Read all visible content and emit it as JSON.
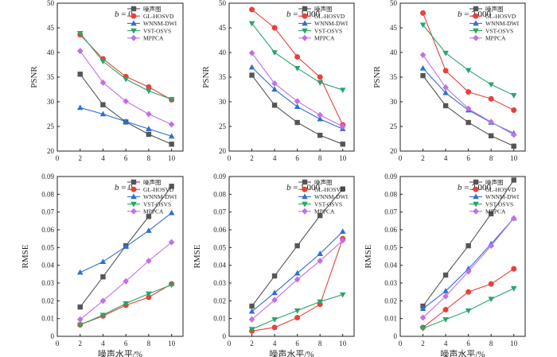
{
  "figure": {
    "xlabel_shared": "噪声水平/%",
    "panel_titles": [
      "b = 0",
      "b = 1 000",
      "b = 2 000"
    ],
    "row_ylabels": [
      "PSNR",
      "RMSE"
    ],
    "legend_labels": [
      "噪声图",
      "GL-HOSVD",
      "WNNM-DWI",
      "VST-OSVS",
      "MPPCA"
    ]
  },
  "style": {
    "series_colors": [
      "#555555",
      "#e8413b",
      "#2f6fd0",
      "#2aa46a",
      "#c170e8"
    ],
    "series_markers": [
      "square",
      "circle",
      "triangle-up",
      "triangle-down",
      "diamond"
    ]
  },
  "chart_data": [
    {
      "type": "line",
      "panel": "psnr-b0",
      "title_prefix": "b",
      "title_value": " = 0",
      "xlabel": "",
      "ylabel": "PSNR",
      "x": [
        2,
        4,
        6,
        8,
        10
      ],
      "xticks": [
        "0",
        "2",
        "4",
        "6",
        "8",
        "10"
      ],
      "yticks": [
        "20",
        "25",
        "30",
        "35",
        "40",
        "45",
        "50"
      ],
      "xlim": [
        0,
        11
      ],
      "ylim": [
        20,
        50
      ],
      "series": [
        {
          "name": "噪声图",
          "values": [
            35.6,
            29.4,
            25.9,
            23.4,
            21.4
          ]
        },
        {
          "name": "GL-HOSVD",
          "values": [
            43.6,
            38.7,
            35.1,
            33.0,
            30.4
          ]
        },
        {
          "name": "WNNM-DWI",
          "values": [
            28.8,
            27.5,
            26.0,
            24.5,
            23.0
          ]
        },
        {
          "name": "VST-OSVS",
          "values": [
            43.9,
            38.2,
            34.6,
            32.2,
            30.5
          ]
        },
        {
          "name": "MPPCA",
          "values": [
            40.3,
            33.9,
            30.1,
            27.5,
            25.4
          ]
        }
      ]
    },
    {
      "type": "line",
      "panel": "psnr-b1000",
      "title_prefix": "b",
      "title_value": " = 1 000",
      "xlabel": "",
      "ylabel": "PSNR",
      "x": [
        2,
        4,
        6,
        8,
        10
      ],
      "xticks": [
        "0",
        "2",
        "4",
        "6",
        "8",
        "10"
      ],
      "yticks": [
        "20",
        "25",
        "30",
        "35",
        "40",
        "45",
        "50"
      ],
      "xlim": [
        0,
        11
      ],
      "ylim": [
        20,
        50
      ],
      "series": [
        {
          "name": "噪声图",
          "values": [
            35.4,
            29.3,
            25.8,
            23.2,
            21.4
          ]
        },
        {
          "name": "GL-HOSVD",
          "values": [
            48.7,
            45.0,
            39.1,
            35.0,
            25.3
          ]
        },
        {
          "name": "WNNM-DWI",
          "values": [
            37.0,
            32.5,
            29.0,
            26.5,
            24.5
          ]
        },
        {
          "name": "VST-OSVS",
          "values": [
            45.9,
            40.0,
            36.8,
            33.9,
            32.4
          ]
        },
        {
          "name": "MPPCA",
          "values": [
            39.9,
            33.7,
            30.1,
            27.3,
            25.0
          ]
        }
      ]
    },
    {
      "type": "line",
      "panel": "psnr-b2000",
      "title_prefix": "b",
      "title_value": " = 2 000",
      "xlabel": "",
      "ylabel": "PSNR",
      "x": [
        2,
        4,
        6,
        8,
        10
      ],
      "xticks": [
        "0",
        "2",
        "4",
        "6",
        "8",
        "10"
      ],
      "yticks": [
        "20",
        "25",
        "30",
        "35",
        "40",
        "45",
        "50"
      ],
      "xlim": [
        0,
        11
      ],
      "ylim": [
        20,
        50
      ],
      "series": [
        {
          "name": "噪声图",
          "values": [
            35.3,
            29.2,
            25.8,
            23.1,
            21.0
          ]
        },
        {
          "name": "GL-HOSVD",
          "values": [
            48.0,
            36.3,
            32.0,
            30.6,
            28.3
          ]
        },
        {
          "name": "WNNM-DWI",
          "values": [
            36.8,
            31.8,
            28.3,
            25.8,
            23.6
          ]
        },
        {
          "name": "VST-OSVS",
          "values": [
            45.6,
            39.9,
            36.4,
            33.5,
            31.3
          ]
        },
        {
          "name": "MPPCA",
          "values": [
            39.5,
            32.9,
            28.6,
            25.9,
            23.3
          ]
        }
      ]
    },
    {
      "type": "line",
      "panel": "rmse-b0",
      "title_prefix": "b",
      "title_value": " = 0",
      "xlabel": "噪声水平/%",
      "ylabel": "RMSE",
      "x": [
        2,
        4,
        6,
        8,
        10
      ],
      "xticks": [
        "0",
        "2",
        "4",
        "6",
        "8",
        "10"
      ],
      "yticks": [
        "0",
        "0.01",
        "0.02",
        "0.03",
        "0.04",
        "0.05",
        "0.06",
        "0.07",
        "0.08",
        "0.09"
      ],
      "xlim": [
        0,
        11
      ],
      "ylim": [
        0,
        0.09
      ],
      "series": [
        {
          "name": "噪声图",
          "values": [
            0.0165,
            0.0335,
            0.051,
            0.0675,
            0.0845
          ]
        },
        {
          "name": "GL-HOSVD",
          "values": [
            0.0065,
            0.0115,
            0.0175,
            0.022,
            0.0295
          ]
        },
        {
          "name": "WNNM-DWI",
          "values": [
            0.036,
            0.042,
            0.0505,
            0.0595,
            0.0695
          ]
        },
        {
          "name": "VST-OSVS",
          "values": [
            0.0065,
            0.012,
            0.0185,
            0.024,
            0.029
          ]
        },
        {
          "name": "MPPCA",
          "values": [
            0.0095,
            0.02,
            0.031,
            0.0425,
            0.053
          ]
        }
      ]
    },
    {
      "type": "line",
      "panel": "rmse-b1000",
      "title_prefix": "b",
      "title_value": " = 1 000",
      "xlabel": "噪声水平/%",
      "ylabel": "RMSE",
      "x": [
        2,
        4,
        6,
        8,
        10
      ],
      "xticks": [
        "0",
        "2",
        "4",
        "6",
        "8",
        "10"
      ],
      "yticks": [
        "0",
        "0.01",
        "0.02",
        "0.03",
        "0.04",
        "0.05",
        "0.06",
        "0.07",
        "0.08",
        "0.09"
      ],
      "xlim": [
        0,
        11
      ],
      "ylim": [
        0,
        0.09
      ],
      "series": [
        {
          "name": "噪声图",
          "values": [
            0.017,
            0.034,
            0.051,
            0.068,
            0.083
          ]
        },
        {
          "name": "GL-HOSVD",
          "values": [
            0.003,
            0.005,
            0.0105,
            0.018,
            0.055
          ]
        },
        {
          "name": "WNNM-DWI",
          "values": [
            0.014,
            0.0245,
            0.0355,
            0.0465,
            0.059
          ]
        },
        {
          "name": "VST-OSVS",
          "values": [
            0.004,
            0.0095,
            0.0145,
            0.0195,
            0.0235
          ]
        },
        {
          "name": "MPPCA",
          "values": [
            0.0095,
            0.0205,
            0.032,
            0.0425,
            0.054
          ]
        }
      ]
    },
    {
      "type": "line",
      "panel": "rmse-b2000",
      "title_prefix": "b",
      "title_value": " = 2 000",
      "xlabel": "噪声水平/%",
      "ylabel": "RMSE",
      "x": [
        2,
        4,
        6,
        8,
        10
      ],
      "xticks": [
        "0",
        "2",
        "4",
        "6",
        "8",
        "10"
      ],
      "yticks": [
        "0",
        "0.01",
        "0.02",
        "0.03",
        "0.04",
        "0.05",
        "0.06",
        "0.07",
        "0.08",
        "0.09"
      ],
      "xlim": [
        0,
        11
      ],
      "ylim": [
        0,
        0.09
      ],
      "series": [
        {
          "name": "噪声图",
          "values": [
            0.017,
            0.0345,
            0.051,
            0.069,
            0.088
          ]
        },
        {
          "name": "GL-HOSVD",
          "values": [
            0.005,
            0.015,
            0.025,
            0.0295,
            0.038
          ]
        },
        {
          "name": "WNNM-DWI",
          "values": [
            0.0155,
            0.0255,
            0.038,
            0.052,
            0.0665
          ]
        },
        {
          "name": "VST-OSVS",
          "values": [
            0.0045,
            0.0095,
            0.0145,
            0.021,
            0.027
          ]
        },
        {
          "name": "MPPCA",
          "values": [
            0.0105,
            0.0225,
            0.0365,
            0.051,
            0.0665
          ]
        }
      ]
    }
  ]
}
